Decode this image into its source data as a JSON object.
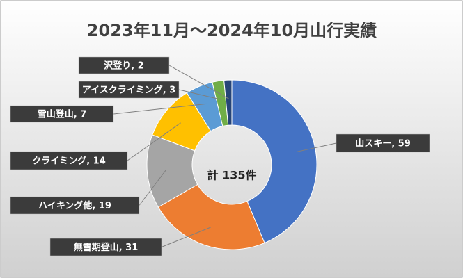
{
  "chart_data": {
    "type": "donut",
    "title": "2023年11月～2024年10月山行実績",
    "center_label": "計 135件",
    "categories": [
      "山スキー",
      "無雪期登山",
      "ハイキング他",
      "クライミング",
      "雪山登山",
      "アイスクライミング",
      "沢登り"
    ],
    "values": [
      59,
      31,
      19,
      14,
      7,
      3,
      2
    ],
    "value_labels": [
      "山スキー, 59",
      "無雪期登山, 31",
      "ハイキング他, 19",
      "クライミング, 14",
      "雪山登山, 7",
      "アイスクライミング, 3",
      "沢登り, 2"
    ],
    "colors": [
      "#4472c4",
      "#ed7d31",
      "#a5a5a5",
      "#ffc000",
      "#5b9bd5",
      "#70ad47",
      "#264478"
    ]
  }
}
